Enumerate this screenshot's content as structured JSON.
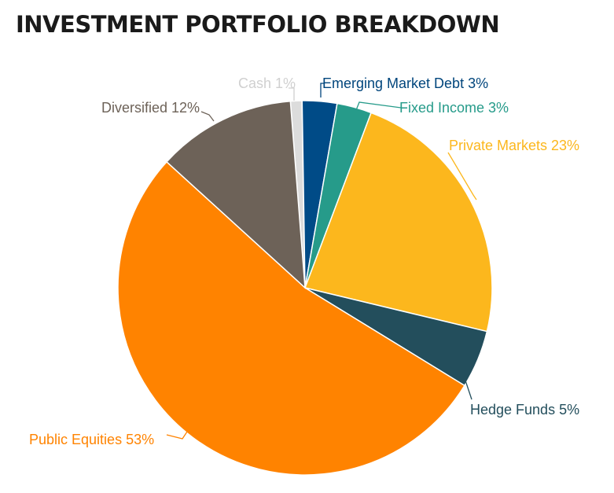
{
  "chart_data": {
    "type": "pie",
    "title": "INVESTMENT PORTFOLIO BREAKDOWN",
    "legend": "none",
    "slices": [
      {
        "name": "Cash",
        "label": "Cash 1%",
        "value": 1,
        "color": "#dcdcdc",
        "label_color": "#d0d0d0"
      },
      {
        "name": "Emerging Market Debt",
        "label": "Emerging Market Debt 3%",
        "value": 3,
        "color": "#004b87",
        "label_color": "#00457c"
      },
      {
        "name": "Fixed Income",
        "label": "Fixed Income 3%",
        "value": 3,
        "color": "#269b8a",
        "label_color": "#269b8a"
      },
      {
        "name": "Private Markets",
        "label": "Private Markets 23%",
        "value": 23,
        "color": "#fcb71d",
        "label_color": "#fcb71d"
      },
      {
        "name": "Hedge Funds",
        "label": "Hedge Funds 5%",
        "value": 5,
        "color": "#234e5c",
        "label_color": "#234e5c"
      },
      {
        "name": "Public Equities",
        "label": "Public Equities 53%",
        "value": 53,
        "color": "#ff8300",
        "label_color": "#ff8300"
      },
      {
        "name": "Diversified",
        "label": "Diversified 12%",
        "value": 12,
        "color": "#6d6258",
        "label_color": "#6d6258"
      }
    ]
  }
}
